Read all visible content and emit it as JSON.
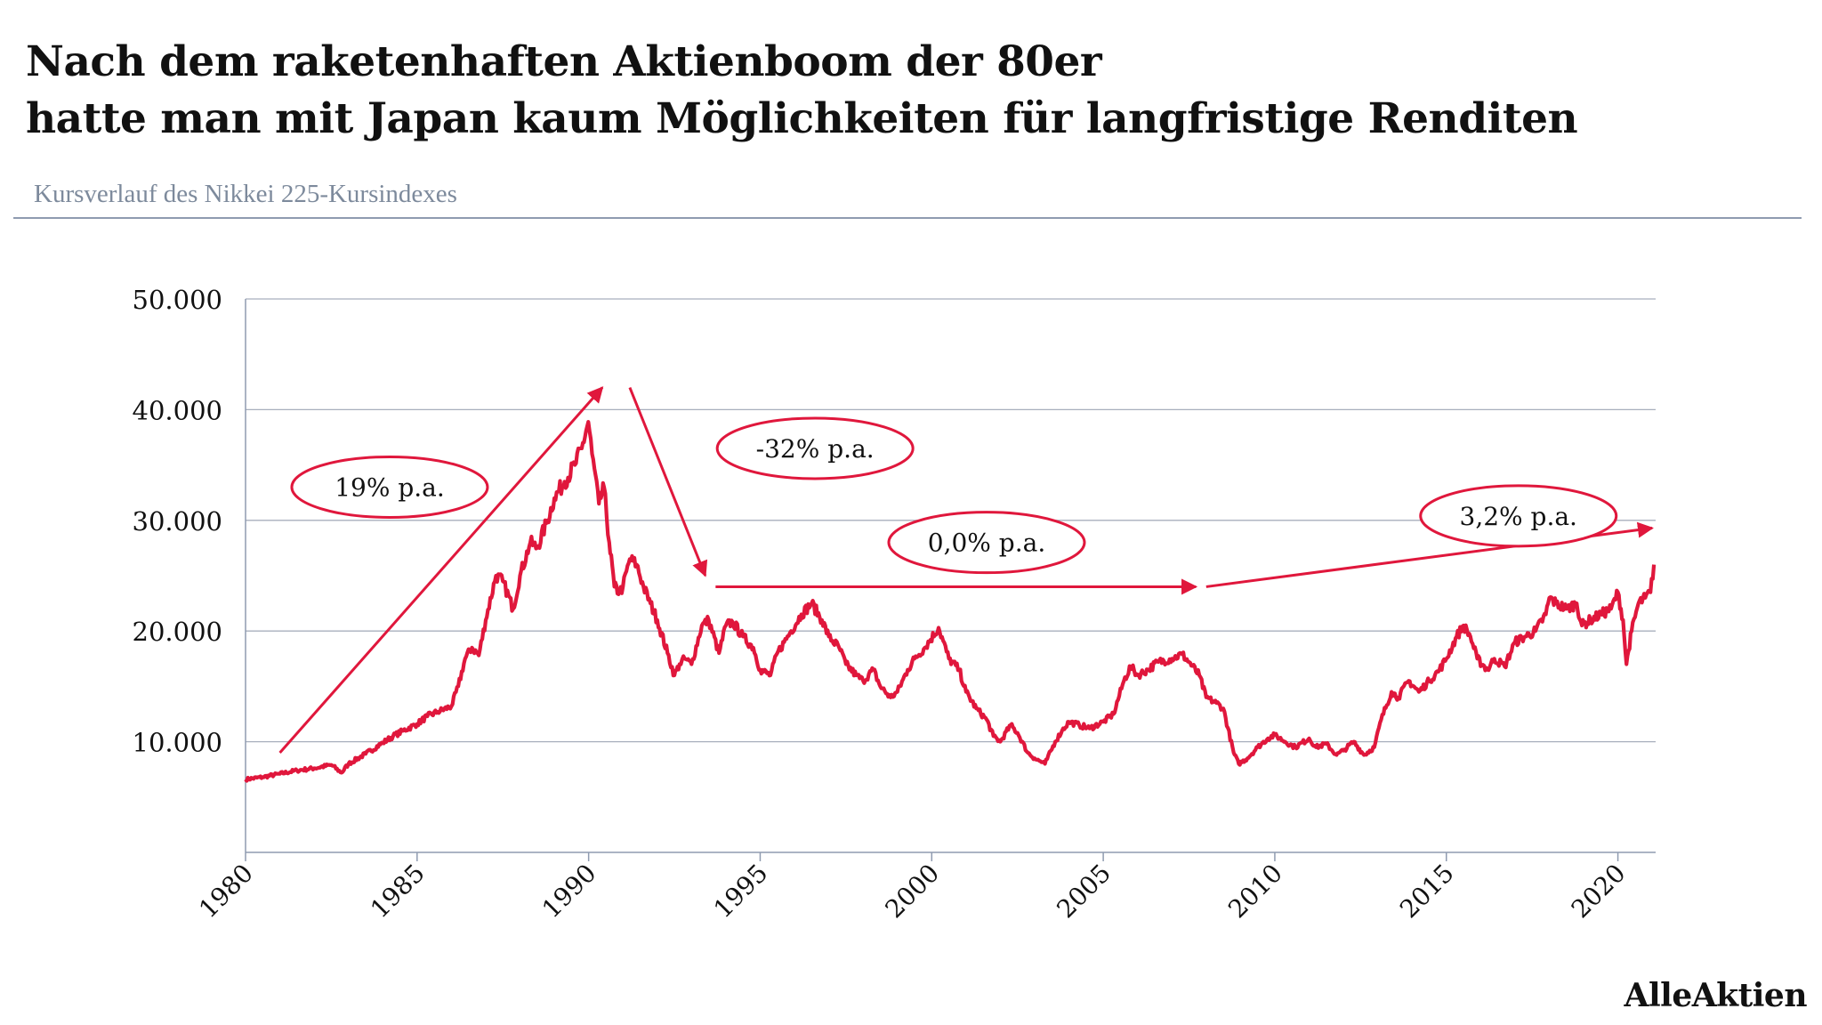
{
  "header": {
    "title_line1": "Nach dem raketenhaften Aktienboom der 80er",
    "title_line2": "hatte man mit Japan kaum Möglichkeiten für langfristige Renditen",
    "subtitle": "Kursverlauf des Nikkei 225-Kursindexes"
  },
  "brand": "AlleAktien",
  "colors": {
    "series": "#e0173c",
    "grid": "#a8afbd",
    "axis": "#8f9bb0",
    "subtitle": "#7d8a9c"
  },
  "chart_data": {
    "type": "line",
    "title": "",
    "xlabel": "",
    "ylabel": "",
    "xlim": [
      1980,
      2021.1
    ],
    "ylim": [
      0,
      50000
    ],
    "x_ticks": [
      1980,
      1985,
      1990,
      1995,
      2000,
      2005,
      2010,
      2015,
      2020
    ],
    "x_tick_labels": [
      "1980",
      "1985",
      "1990",
      "1995",
      "2000",
      "2005",
      "2010",
      "2015",
      "2020"
    ],
    "y_ticks": [
      10000,
      20000,
      30000,
      40000,
      50000
    ],
    "y_tick_labels": [
      "10.000",
      "20.000",
      "30.000",
      "40.000",
      "50.000"
    ],
    "grid": true,
    "series": [
      {
        "x": [
          1980.0,
          1980.5,
          1981.0,
          1981.5,
          1982.0,
          1982.5,
          1982.8,
          1983.0,
          1983.5,
          1984.0,
          1984.3,
          1984.6,
          1985.0,
          1985.3,
          1985.6,
          1986.0,
          1986.2,
          1986.4,
          1986.6,
          1986.8,
          1987.0,
          1987.3,
          1987.5,
          1987.8,
          1988.0,
          1988.3,
          1988.5,
          1988.8,
          1989.0,
          1989.3,
          1989.6,
          1989.8,
          1989.99,
          1990.1,
          1990.3,
          1990.45,
          1990.6,
          1990.75,
          1990.9,
          1991.0,
          1991.2,
          1991.4,
          1991.6,
          1991.8,
          1992.0,
          1992.3,
          1992.5,
          1992.65,
          1992.8,
          1993.0,
          1993.3,
          1993.5,
          1993.8,
          1994.0,
          1994.2,
          1994.5,
          1994.8,
          1995.0,
          1995.3,
          1995.5,
          1995.7,
          1995.9,
          1996.2,
          1996.5,
          1996.8,
          1997.0,
          1997.3,
          1997.5,
          1997.8,
          1998.0,
          1998.3,
          1998.5,
          1998.8,
          1999.0,
          1999.3,
          1999.5,
          1999.8,
          2000.2,
          2000.5,
          2000.8,
          2001.0,
          2001.3,
          2001.6,
          2001.8,
          2002.0,
          2002.3,
          2002.5,
          2002.8,
          2003.0,
          2003.3,
          2003.6,
          2003.8,
          2004.0,
          2004.3,
          2004.6,
          2005.0,
          2005.3,
          2005.6,
          2005.8,
          2006.0,
          2006.3,
          2006.6,
          2007.0,
          2007.3,
          2007.5,
          2007.8,
          2008.0,
          2008.3,
          2008.5,
          2008.8,
          2008.95,
          2009.2,
          2009.5,
          2009.8,
          2010.0,
          2010.3,
          2010.6,
          2011.0,
          2011.2,
          2011.5,
          2011.8,
          2012.0,
          2012.3,
          2012.6,
          2012.9,
          2013.1,
          2013.4,
          2013.6,
          2013.9,
          2014.2,
          2014.5,
          2014.8,
          2015.0,
          2015.3,
          2015.5,
          2015.7,
          2015.9,
          2016.2,
          2016.4,
          2016.7,
          2017.0,
          2017.3,
          2017.6,
          2017.9,
          2018.0,
          2018.2,
          2018.5,
          2018.8,
          2018.95,
          2019.2,
          2019.5,
          2019.8,
          2020.0,
          2020.15,
          2020.25,
          2020.4,
          2020.6,
          2020.8,
          2020.95,
          2021.05
        ],
        "y": [
          6600,
          6800,
          7100,
          7400,
          7600,
          7900,
          7200,
          8000,
          8900,
          9900,
          10500,
          11000,
          11600,
          12300,
          12700,
          13200,
          15000,
          17500,
          18500,
          17800,
          21000,
          25000,
          24500,
          22000,
          25000,
          28000,
          27500,
          30000,
          32000,
          33500,
          35000,
          36500,
          38900,
          36000,
          31500,
          33000,
          28000,
          24000,
          23500,
          24000,
          26500,
          26000,
          24000,
          22500,
          21000,
          18000,
          16000,
          17000,
          17500,
          17000,
          20500,
          21000,
          18000,
          20500,
          20800,
          19500,
          18500,
          16500,
          16000,
          18000,
          19000,
          20000,
          21500,
          22500,
          21000,
          19500,
          18500,
          17000,
          16000,
          15500,
          16500,
          15000,
          14000,
          14500,
          16500,
          17500,
          18500,
          20300,
          17500,
          16500,
          14500,
          13000,
          12000,
          10500,
          10000,
          11500,
          10800,
          9000,
          8500,
          8000,
          10000,
          11000,
          11800,
          11500,
          11200,
          11800,
          12500,
          15500,
          16800,
          16000,
          16500,
          17200,
          17500,
          17900,
          17200,
          16000,
          14000,
          13500,
          13000,
          9000,
          8000,
          8500,
          9500,
          10300,
          10600,
          10000,
          9500,
          10300,
          9500,
          9800,
          8800,
          9200,
          10000,
          8800,
          9500,
          12000,
          14500,
          14000,
          15500,
          14500,
          15500,
          16500,
          17500,
          19500,
          20500,
          19500,
          17500,
          16500,
          17500,
          16800,
          19000,
          19500,
          20000,
          21500,
          23000,
          22500,
          22000,
          22500,
          20500,
          21000,
          21500,
          22000,
          23500,
          21000,
          17000,
          20000,
          22500,
          23000,
          23500,
          26000
        ]
      }
    ],
    "annotations": [
      {
        "label": "19% p.a.",
        "x": 1984.2,
        "y": 33000
      },
      {
        "label": "-32% p.a.",
        "x": 1996.6,
        "y": 36500
      },
      {
        "label": "0,0% p.a.",
        "x": 2001.6,
        "y": 28000
      },
      {
        "label": "3,2% p.a.",
        "x": 2017.1,
        "y": 30400
      }
    ],
    "trend_arrows": [
      {
        "from": [
          1981.0,
          9000
        ],
        "to": [
          1990.4,
          42000
        ]
      },
      {
        "from": [
          1991.2,
          42000
        ],
        "to": [
          1993.4,
          25000
        ]
      },
      {
        "from": [
          1993.7,
          24000
        ],
        "to": [
          2007.7,
          24000
        ]
      },
      {
        "from": [
          2008.0,
          24000
        ],
        "to": [
          2021.0,
          29300
        ]
      }
    ]
  }
}
